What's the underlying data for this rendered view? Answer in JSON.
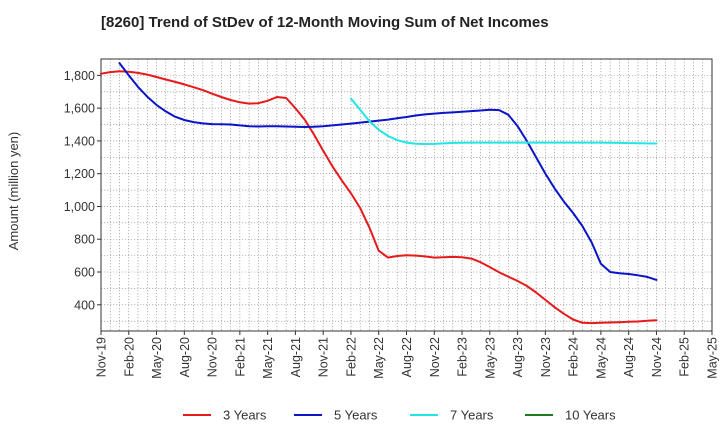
{
  "chart_data": {
    "type": "line",
    "title": "[8260]  Trend of StDev of 12-Month Moving Sum of Net Incomes",
    "xlabel": "",
    "ylabel": "Amount (million yen)",
    "ylim": [
      240,
      1900
    ],
    "yticks": [
      400,
      600,
      800,
      1000,
      1200,
      1400,
      1600,
      1800
    ],
    "ytick_labels": [
      "400",
      "600",
      "800",
      "1,000",
      "1,200",
      "1,400",
      "1,600",
      "1,800"
    ],
    "x_range": [
      "2019-11",
      "2025-05"
    ],
    "xtick_labels": [
      "Nov-19",
      "Feb-20",
      "May-20",
      "Aug-20",
      "Nov-20",
      "Feb-21",
      "May-21",
      "Aug-21",
      "Nov-21",
      "Feb-22",
      "May-22",
      "Aug-22",
      "Nov-22",
      "Feb-23",
      "May-23",
      "Aug-23",
      "Nov-23",
      "Feb-24",
      "May-24",
      "Aug-24",
      "Nov-24",
      "Feb-25",
      "May-25"
    ],
    "grid": true,
    "legend_position": "bottom",
    "series": [
      {
        "name": "3 Years",
        "color": "#e8191b",
        "points": [
          [
            "2019-11",
            1810
          ],
          [
            "2019-12",
            1820
          ],
          [
            "2020-01",
            1825
          ],
          [
            "2020-02",
            1822
          ],
          [
            "2020-03",
            1815
          ],
          [
            "2020-04",
            1805
          ],
          [
            "2020-05",
            1790
          ],
          [
            "2020-06",
            1775
          ],
          [
            "2020-07",
            1760
          ],
          [
            "2020-08",
            1745
          ],
          [
            "2020-09",
            1728
          ],
          [
            "2020-10",
            1710
          ],
          [
            "2020-11",
            1688
          ],
          [
            "2020-12",
            1668
          ],
          [
            "2021-01",
            1650
          ],
          [
            "2021-02",
            1636
          ],
          [
            "2021-03",
            1628
          ],
          [
            "2021-04",
            1630
          ],
          [
            "2021-05",
            1645
          ],
          [
            "2021-06",
            1668
          ],
          [
            "2021-07",
            1662
          ],
          [
            "2021-08",
            1600
          ],
          [
            "2021-09",
            1530
          ],
          [
            "2021-10",
            1440
          ],
          [
            "2021-11",
            1340
          ],
          [
            "2021-12",
            1245
          ],
          [
            "2022-01",
            1160
          ],
          [
            "2022-02",
            1080
          ],
          [
            "2022-03",
            990
          ],
          [
            "2022-04",
            870
          ],
          [
            "2022-05",
            730
          ],
          [
            "2022-06",
            688
          ],
          [
            "2022-07",
            698
          ],
          [
            "2022-08",
            702
          ],
          [
            "2022-09",
            700
          ],
          [
            "2022-10",
            695
          ],
          [
            "2022-11",
            688
          ],
          [
            "2022-12",
            690
          ],
          [
            "2023-01",
            692
          ],
          [
            "2023-02",
            690
          ],
          [
            "2023-03",
            682
          ],
          [
            "2023-04",
            660
          ],
          [
            "2023-05",
            630
          ],
          [
            "2023-06",
            598
          ],
          [
            "2023-07",
            572
          ],
          [
            "2023-08",
            545
          ],
          [
            "2023-09",
            515
          ],
          [
            "2023-10",
            475
          ],
          [
            "2023-11",
            430
          ],
          [
            "2023-12",
            385
          ],
          [
            "2024-01",
            345
          ],
          [
            "2024-02",
            310
          ],
          [
            "2024-03",
            290
          ],
          [
            "2024-04",
            288
          ],
          [
            "2024-05",
            290
          ],
          [
            "2024-06",
            292
          ],
          [
            "2024-07",
            294
          ],
          [
            "2024-08",
            296
          ],
          [
            "2024-09",
            298
          ],
          [
            "2024-10",
            302
          ],
          [
            "2024-11",
            305
          ]
        ]
      },
      {
        "name": "5 Years",
        "color": "#0a14c8",
        "points": [
          [
            "2020-01",
            1875
          ],
          [
            "2020-02",
            1800
          ],
          [
            "2020-03",
            1730
          ],
          [
            "2020-04",
            1670
          ],
          [
            "2020-05",
            1620
          ],
          [
            "2020-06",
            1580
          ],
          [
            "2020-07",
            1548
          ],
          [
            "2020-08",
            1528
          ],
          [
            "2020-09",
            1515
          ],
          [
            "2020-10",
            1507
          ],
          [
            "2020-11",
            1503
          ],
          [
            "2020-12",
            1502
          ],
          [
            "2021-01",
            1500
          ],
          [
            "2021-02",
            1495
          ],
          [
            "2021-03",
            1490
          ],
          [
            "2021-04",
            1488
          ],
          [
            "2021-05",
            1490
          ],
          [
            "2021-06",
            1490
          ],
          [
            "2021-07",
            1488
          ],
          [
            "2021-08",
            1486
          ],
          [
            "2021-09",
            1485
          ],
          [
            "2021-10",
            1486
          ],
          [
            "2021-11",
            1490
          ],
          [
            "2021-12",
            1495
          ],
          [
            "2022-01",
            1500
          ],
          [
            "2022-02",
            1506
          ],
          [
            "2022-03",
            1512
          ],
          [
            "2022-04",
            1518
          ],
          [
            "2022-05",
            1524
          ],
          [
            "2022-06",
            1530
          ],
          [
            "2022-07",
            1538
          ],
          [
            "2022-08",
            1546
          ],
          [
            "2022-09",
            1555
          ],
          [
            "2022-10",
            1562
          ],
          [
            "2022-11",
            1567
          ],
          [
            "2022-12",
            1571
          ],
          [
            "2023-01",
            1574
          ],
          [
            "2023-02",
            1578
          ],
          [
            "2023-03",
            1582
          ],
          [
            "2023-04",
            1586
          ],
          [
            "2023-05",
            1590
          ],
          [
            "2023-06",
            1588
          ],
          [
            "2023-07",
            1560
          ],
          [
            "2023-08",
            1490
          ],
          [
            "2023-09",
            1400
          ],
          [
            "2023-10",
            1300
          ],
          [
            "2023-11",
            1200
          ],
          [
            "2023-12",
            1110
          ],
          [
            "2024-01",
            1030
          ],
          [
            "2024-02",
            960
          ],
          [
            "2024-03",
            880
          ],
          [
            "2024-04",
            780
          ],
          [
            "2024-05",
            650
          ],
          [
            "2024-06",
            600
          ],
          [
            "2024-07",
            593
          ],
          [
            "2024-08",
            588
          ],
          [
            "2024-09",
            580
          ],
          [
            "2024-10",
            570
          ],
          [
            "2024-11",
            552
          ]
        ]
      },
      {
        "name": "7 Years",
        "color": "#22e6e6",
        "points": [
          [
            "2022-02",
            1658
          ],
          [
            "2022-03",
            1590
          ],
          [
            "2022-04",
            1520
          ],
          [
            "2022-05",
            1468
          ],
          [
            "2022-06",
            1430
          ],
          [
            "2022-07",
            1405
          ],
          [
            "2022-08",
            1390
          ],
          [
            "2022-09",
            1383
          ],
          [
            "2022-10",
            1381
          ],
          [
            "2022-11",
            1382
          ],
          [
            "2022-12",
            1385
          ],
          [
            "2023-01",
            1388
          ],
          [
            "2023-02",
            1389
          ],
          [
            "2023-03",
            1390
          ],
          [
            "2023-04",
            1390
          ],
          [
            "2023-05",
            1390
          ],
          [
            "2023-06",
            1390
          ],
          [
            "2023-07",
            1390
          ],
          [
            "2023-08",
            1390
          ],
          [
            "2023-09",
            1390
          ],
          [
            "2023-10",
            1390
          ],
          [
            "2023-11",
            1390
          ],
          [
            "2023-12",
            1390
          ],
          [
            "2024-01",
            1390
          ],
          [
            "2024-02",
            1390
          ],
          [
            "2024-03",
            1390
          ],
          [
            "2024-04",
            1390
          ],
          [
            "2024-05",
            1390
          ],
          [
            "2024-06",
            1389
          ],
          [
            "2024-07",
            1388
          ],
          [
            "2024-08",
            1387
          ],
          [
            "2024-09",
            1386
          ],
          [
            "2024-10",
            1385
          ],
          [
            "2024-11",
            1384
          ]
        ]
      },
      {
        "name": "10 Years",
        "color": "#1e7a1e",
        "points": []
      }
    ]
  }
}
